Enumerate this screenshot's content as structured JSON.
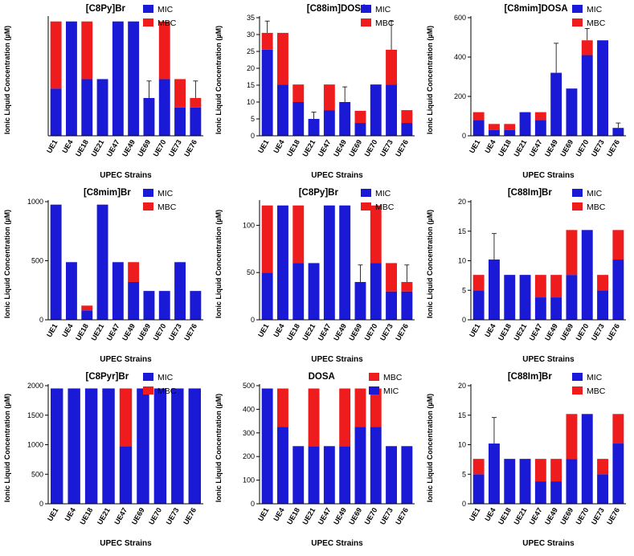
{
  "colors": {
    "mic": "#1a1ad6",
    "mbc": "#ee1c1c",
    "axis": "#000000",
    "error": "#000000"
  },
  "chart_data": [
    {
      "type": "bar",
      "stacked": true,
      "title": "[C8Py]Br",
      "xlabel": "UPEC Strains",
      "ylabel": "Ionic Liquid Concentration (µM)",
      "ylim": [
        0,
        125
      ],
      "yticks": [],
      "legend": [
        {
          "name": "MIC",
          "key": "mic"
        },
        {
          "name": "MBC",
          "key": "mbc"
        }
      ],
      "categories": [
        "UE1",
        "UE4",
        "UE18",
        "UE21",
        "UE47",
        "UE49",
        "UE69",
        "UE70",
        "UE73",
        "UE76"
      ],
      "series": [
        {
          "name": "MIC",
          "key": "mic",
          "values": [
            50,
            121,
            60,
            60,
            121,
            121,
            40,
            60,
            30,
            30
          ]
        },
        {
          "name": "MBC",
          "key": "mbc",
          "values": [
            71,
            0,
            61,
            0,
            0,
            0,
            0,
            61,
            30,
            10
          ]
        }
      ],
      "errors": [
        null,
        null,
        null,
        null,
        null,
        null,
        58,
        null,
        null,
        58
      ]
    },
    {
      "type": "bar",
      "stacked": true,
      "title": "[C88im]DOSA",
      "xlabel": "UPEC Strains",
      "ylabel": "Ionic Liquid Concentration (µM)",
      "ylim": [
        0,
        35
      ],
      "yticks": [
        0,
        5,
        10,
        15,
        20,
        25,
        30,
        35
      ],
      "legend": [
        {
          "name": "MIC",
          "key": "mic"
        },
        {
          "name": "MBC",
          "key": "mbc"
        }
      ],
      "categories": [
        "UE1",
        "UE4",
        "UE18",
        "UE21",
        "UE47",
        "UE49",
        "UE69",
        "UE70",
        "UE73",
        "UE76"
      ],
      "series": [
        {
          "name": "MIC",
          "key": "mic",
          "values": [
            25.5,
            15.2,
            10,
            5,
            7.6,
            10,
            3.8,
            15.2,
            15.2,
            3.8
          ]
        },
        {
          "name": "MBC",
          "key": "mbc",
          "values": [
            5,
            15.3,
            5.2,
            0,
            7.6,
            0,
            3.6,
            0,
            10.3,
            3.8
          ]
        }
      ],
      "errors": [
        34,
        null,
        null,
        7,
        null,
        14.5,
        null,
        null,
        34,
        null
      ]
    },
    {
      "type": "bar",
      "stacked": true,
      "title": "[C8mim]DOSA",
      "xlabel": "UPEC Strains",
      "ylabel": "Ionic Liquid Concentration (µM)",
      "ylim": [
        0,
        600
      ],
      "yticks": [
        0,
        200,
        400,
        600
      ],
      "legend": [
        {
          "name": "MIC",
          "key": "mic"
        },
        {
          "name": "MBC",
          "key": "mbc"
        }
      ],
      "categories": [
        "UE1",
        "UE4",
        "UE18",
        "UE21",
        "UE47",
        "UE49",
        "UE69",
        "UE70",
        "UE73",
        "UE76"
      ],
      "series": [
        {
          "name": "MIC",
          "key": "mic",
          "values": [
            80,
            30,
            30,
            120,
            80,
            320,
            240,
            410,
            485,
            40
          ]
        },
        {
          "name": "MBC",
          "key": "mbc",
          "values": [
            40,
            30,
            30,
            0,
            40,
            0,
            0,
            75,
            0,
            0
          ]
        }
      ],
      "errors": [
        null,
        null,
        null,
        null,
        null,
        470,
        null,
        545,
        null,
        65
      ]
    },
    {
      "type": "bar",
      "stacked": true,
      "title": "[C8mim]Br",
      "xlabel": "UPEC Strains",
      "ylabel": "Ionic Liquid Concentration (µM)",
      "ylim": [
        0,
        1000
      ],
      "yticks": [
        0,
        500,
        1000
      ],
      "legend": [
        {
          "name": "MIC",
          "key": "mic"
        },
        {
          "name": "MBC",
          "key": "mbc"
        }
      ],
      "categories": [
        "UE1",
        "UE4",
        "UE18",
        "UE21",
        "UE47",
        "UE49",
        "UE69",
        "UE70",
        "UE73",
        "UE76"
      ],
      "series": [
        {
          "name": "MIC",
          "key": "mic",
          "values": [
            975,
            488,
            80,
            975,
            488,
            320,
            244,
            244,
            488,
            244
          ]
        },
        {
          "name": "MBC",
          "key": "mbc",
          "values": [
            0,
            0,
            40,
            0,
            0,
            168,
            0,
            0,
            0,
            0
          ]
        }
      ],
      "errors": [
        null,
        null,
        null,
        null,
        null,
        null,
        null,
        null,
        null,
        null
      ]
    },
    {
      "type": "bar",
      "stacked": true,
      "title": "[C8Py]Br",
      "xlabel": "UPEC Strains",
      "ylabel": "Ionic Liquid Concentration (µM)",
      "ylim": [
        0,
        125
      ],
      "yticks": [
        0,
        50,
        100
      ],
      "legend": [
        {
          "name": "MIC",
          "key": "mic"
        },
        {
          "name": "MBC",
          "key": "mbc"
        }
      ],
      "categories": [
        "UE1",
        "UE4",
        "UE18",
        "UE21",
        "UE47",
        "UE49",
        "UE69",
        "UE70",
        "UE73",
        "UE76"
      ],
      "series": [
        {
          "name": "MIC",
          "key": "mic",
          "values": [
            50,
            121,
            60,
            60,
            121,
            121,
            40,
            60,
            30,
            30
          ]
        },
        {
          "name": "MBC",
          "key": "mbc",
          "values": [
            71,
            0,
            61,
            0,
            0,
            0,
            0,
            61,
            30,
            10
          ]
        }
      ],
      "errors": [
        null,
        null,
        null,
        null,
        null,
        null,
        58,
        null,
        null,
        58
      ]
    },
    {
      "type": "bar",
      "stacked": true,
      "title": "[C88Im]Br",
      "xlabel": "UPEC Strains",
      "ylabel": "Ionic Liquid Concentration (µM)",
      "ylim": [
        0,
        20
      ],
      "yticks": [
        0,
        5,
        10,
        15,
        20
      ],
      "legend": [
        {
          "name": "MIC",
          "key": "mic"
        },
        {
          "name": "MBC",
          "key": "mbc"
        }
      ],
      "categories": [
        "UE1",
        "UE4",
        "UE18",
        "UE21",
        "UE47",
        "UE49",
        "UE69",
        "UE70",
        "UE73",
        "UE76"
      ],
      "series": [
        {
          "name": "MIC",
          "key": "mic",
          "values": [
            5,
            10.2,
            7.6,
            7.6,
            3.8,
            3.8,
            7.6,
            15.2,
            5,
            10.2
          ]
        },
        {
          "name": "MBC",
          "key": "mbc",
          "values": [
            2.6,
            0,
            0,
            0,
            3.8,
            3.8,
            7.6,
            0,
            2.6,
            5
          ]
        }
      ],
      "errors": [
        null,
        14.6,
        null,
        null,
        null,
        null,
        null,
        null,
        null,
        null
      ]
    },
    {
      "type": "bar",
      "stacked": true,
      "title": "[C8Pyr]Br",
      "xlabel": "UPEC Strains",
      "ylabel": "Ionic Liquid Concentration (µM)",
      "ylim": [
        0,
        2000
      ],
      "yticks": [
        0,
        500,
        1000,
        1500,
        2000
      ],
      "legend": [
        {
          "name": "MIC",
          "key": "mic"
        },
        {
          "name": "MBC",
          "key": "mbc"
        }
      ],
      "categories": [
        "UE1",
        "UE4",
        "UE18",
        "UE21",
        "UE47",
        "UE69",
        "UE70",
        "UE73",
        "UE76"
      ],
      "series": [
        {
          "name": "MIC",
          "key": "mic",
          "values": [
            1953,
            1953,
            1953,
            1953,
            976,
            1953,
            1953,
            1953,
            1953
          ]
        },
        {
          "name": "MBC",
          "key": "mbc",
          "values": [
            0,
            0,
            0,
            0,
            977,
            0,
            0,
            0,
            0
          ]
        }
      ],
      "errors": [
        null,
        null,
        null,
        null,
        null,
        null,
        null,
        null,
        null
      ]
    },
    {
      "type": "bar",
      "stacked": true,
      "title": "DOSA",
      "xlabel": "UPEC Strains",
      "ylabel": "Ionic Liquid Concentration (µM)",
      "ylim": [
        0,
        500
      ],
      "yticks": [
        0,
        100,
        200,
        300,
        400,
        500
      ],
      "legend": [
        {
          "name": "MBC",
          "key": "mbc"
        },
        {
          "name": "MIC",
          "key": "mic"
        }
      ],
      "categories": [
        "UE1",
        "UE4",
        "UE18",
        "UE21",
        "UE47",
        "UE49",
        "UE69",
        "UE70",
        "UE73",
        "UE76"
      ],
      "series": [
        {
          "name": "MIC",
          "key": "mic",
          "values": [
            488,
            325,
            244,
            244,
            244,
            244,
            325,
            325,
            244,
            244
          ]
        },
        {
          "name": "MBC",
          "key": "mbc",
          "values": [
            0,
            163,
            0,
            244,
            0,
            244,
            163,
            163,
            0,
            0
          ]
        }
      ],
      "errors": [
        null,
        null,
        null,
        null,
        null,
        null,
        null,
        null,
        null,
        null
      ]
    },
    {
      "type": "bar",
      "stacked": true,
      "title": "[C88Im]Br",
      "xlabel": "UPEC Strains",
      "ylabel": "Ionic Liquid Concentration (µM)",
      "ylim": [
        0,
        20
      ],
      "yticks": [
        0,
        5,
        10,
        15,
        20
      ],
      "legend": [
        {
          "name": "MIC",
          "key": "mic"
        },
        {
          "name": "MBC",
          "key": "mbc"
        }
      ],
      "categories": [
        "UE1",
        "UE4",
        "UE18",
        "UE21",
        "UE47",
        "UE49",
        "UE69",
        "UE70",
        "UE73",
        "UE76"
      ],
      "series": [
        {
          "name": "MIC",
          "key": "mic",
          "values": [
            5,
            10.2,
            7.6,
            7.6,
            3.8,
            3.8,
            7.6,
            15.2,
            5,
            10.2
          ]
        },
        {
          "name": "MBC",
          "key": "mbc",
          "values": [
            2.6,
            0,
            0,
            0,
            3.8,
            3.8,
            7.6,
            0,
            2.6,
            5
          ]
        }
      ],
      "errors": [
        null,
        14.6,
        null,
        null,
        null,
        null,
        null,
        null,
        null,
        null
      ]
    }
  ]
}
